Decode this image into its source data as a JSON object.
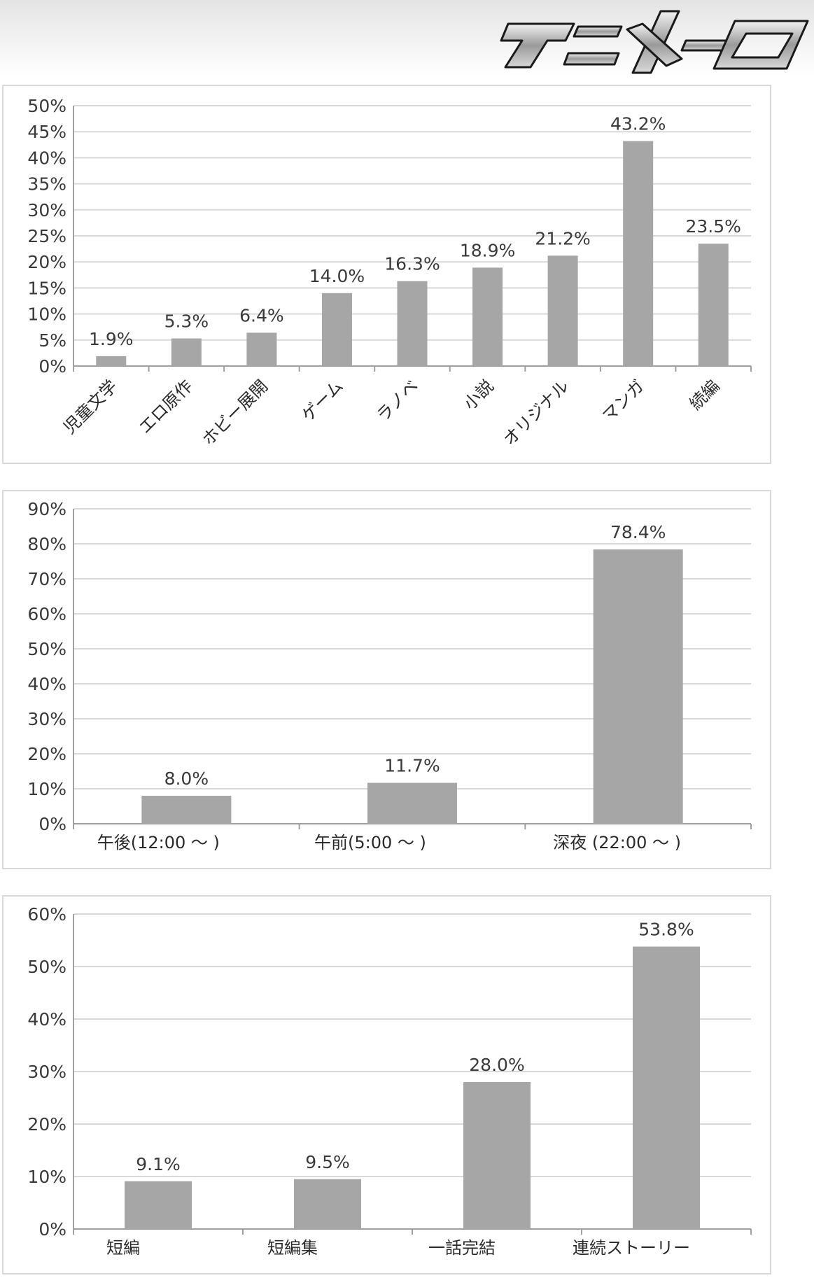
{
  "header": {
    "logo_text": "アニメーロ"
  },
  "colors": {
    "bar": "#a6a6a6",
    "grid": "#d9d9d9",
    "axis": "#a0a0a0",
    "text": "#3a3a3a"
  },
  "chart_data": [
    {
      "type": "bar",
      "categories": [
        "児童文学",
        "エロ原作",
        "ホビー展開",
        "ゲーム",
        "ラノベ",
        "小説",
        "オリジナル",
        "マンガ",
        "続編"
      ],
      "values": [
        1.9,
        5.3,
        6.4,
        14.0,
        16.3,
        18.9,
        21.2,
        43.2,
        23.5
      ],
      "value_labels": [
        "1.9%",
        "5.3%",
        "6.4%",
        "14.0%",
        "16.3%",
        "18.9%",
        "21.2%",
        "43.2%",
        "23.5%"
      ],
      "ylim": [
        0,
        50
      ],
      "ytick_labels": [
        "0%",
        "5%",
        "10%",
        "15%",
        "20%",
        "25%",
        "30%",
        "35%",
        "40%",
        "45%",
        "50%"
      ],
      "grid": true,
      "legend": "none",
      "xlabel_rotation": -45
    },
    {
      "type": "bar",
      "categories": [
        "午後(12:00 ～ )",
        "午前(5:00 ～ )",
        "深夜 (22:00 ～ )"
      ],
      "values": [
        8.0,
        11.7,
        78.4
      ],
      "value_labels": [
        "8.0%",
        "11.7%",
        "78.4%"
      ],
      "ylim": [
        0,
        90
      ],
      "ytick_labels": [
        "0%",
        "10%",
        "20%",
        "30%",
        "40%",
        "50%",
        "60%",
        "70%",
        "80%",
        "90%"
      ],
      "grid": true,
      "legend": "none"
    },
    {
      "type": "bar",
      "categories": [
        "短編",
        "短編集",
        "一話完結",
        "連続ストーリー"
      ],
      "values": [
        9.1,
        9.5,
        28.0,
        53.8
      ],
      "value_labels": [
        "9.1%",
        "9.5%",
        "28.0%",
        "53.8%"
      ],
      "ylim": [
        0,
        60
      ],
      "ytick_labels": [
        "0%",
        "10%",
        "20%",
        "30%",
        "40%",
        "50%",
        "60%"
      ],
      "grid": true,
      "legend": "none"
    }
  ]
}
